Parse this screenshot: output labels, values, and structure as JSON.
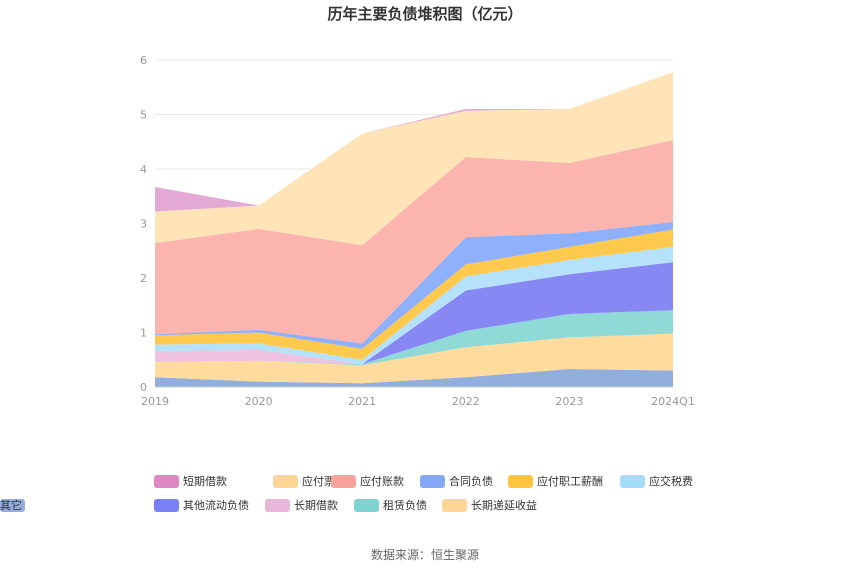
{
  "chart_data": {
    "type": "area",
    "title": "历年主要负债堆积图（亿元）",
    "categories": [
      "2019",
      "2020",
      "2021",
      "2022",
      "2023",
      "2024Q1"
    ],
    "ylim": [
      0,
      6
    ],
    "yticks": [
      0,
      1,
      2,
      3,
      4,
      5,
      6
    ],
    "grid": true,
    "legend_position": "bottom",
    "source": "数据来源：恒生聚源",
    "series": [
      {
        "name": "其它",
        "color": "#92aedc",
        "values": [
          0.18,
          0.1,
          0.07,
          0.18,
          0.33,
          0.3
        ]
      },
      {
        "name": "长期递延收益",
        "color": "#ffdc9e",
        "values": [
          0.28,
          0.38,
          0.33,
          0.55,
          0.58,
          0.68
        ]
      },
      {
        "name": "租赁负债",
        "color": "#8fd9d6",
        "values": [
          0.0,
          0.0,
          0.02,
          0.3,
          0.43,
          0.43
        ]
      },
      {
        "name": "长期借款",
        "color": "#efc2e1",
        "values": [
          0.2,
          0.2,
          0.0,
          0.0,
          0.0,
          0.0
        ]
      },
      {
        "name": "其他流动负债",
        "color": "#8888f5",
        "values": [
          0.0,
          0.0,
          0.0,
          0.74,
          0.73,
          0.88
        ]
      },
      {
        "name": "应交税费",
        "color": "#b5e2fa",
        "values": [
          0.12,
          0.12,
          0.08,
          0.26,
          0.26,
          0.28
        ]
      },
      {
        "name": "应付职工薪酬",
        "color": "#ffc94d",
        "values": [
          0.17,
          0.2,
          0.2,
          0.22,
          0.24,
          0.32
        ]
      },
      {
        "name": "合同负债",
        "color": "#8fb0fa",
        "values": [
          0.02,
          0.05,
          0.1,
          0.5,
          0.25,
          0.14
        ]
      },
      {
        "name": "应付账款",
        "color": "#fbb5ae",
        "values": [
          1.67,
          1.85,
          1.8,
          1.47,
          1.29,
          1.5
        ]
      },
      {
        "name": "应付票据",
        "color": "#ffe4b8",
        "values": [
          0.58,
          0.43,
          2.05,
          0.85,
          0.99,
          1.25
        ]
      },
      {
        "name": "短期借款",
        "color": "#e3a8d3",
        "values": [
          0.45,
          0.0,
          0.0,
          0.03,
          0.0,
          0.0
        ]
      }
    ],
    "legend_order": [
      "短期借款",
      "应付票据",
      "应付账款",
      "合同负债",
      "应付职工薪酬",
      "应交税费",
      "其他流动负债",
      "长期借款",
      "租赁负债",
      "长期递延收益",
      "其它"
    ],
    "legend_colors": {
      "短期借款": "#dd88c3",
      "应付票据": "#ffd595",
      "应付账款": "#f7a39b",
      "合同负债": "#86a8fa",
      "应付职工薪酬": "#ffc53d",
      "应交税费": "#a5dcf9",
      "其他流动负债": "#7b7ff6",
      "长期借款": "#e8b7da",
      "租赁负债": "#7dd4d0",
      "长期递延收益": "#ffd598",
      "其它": "#93acda"
    }
  }
}
